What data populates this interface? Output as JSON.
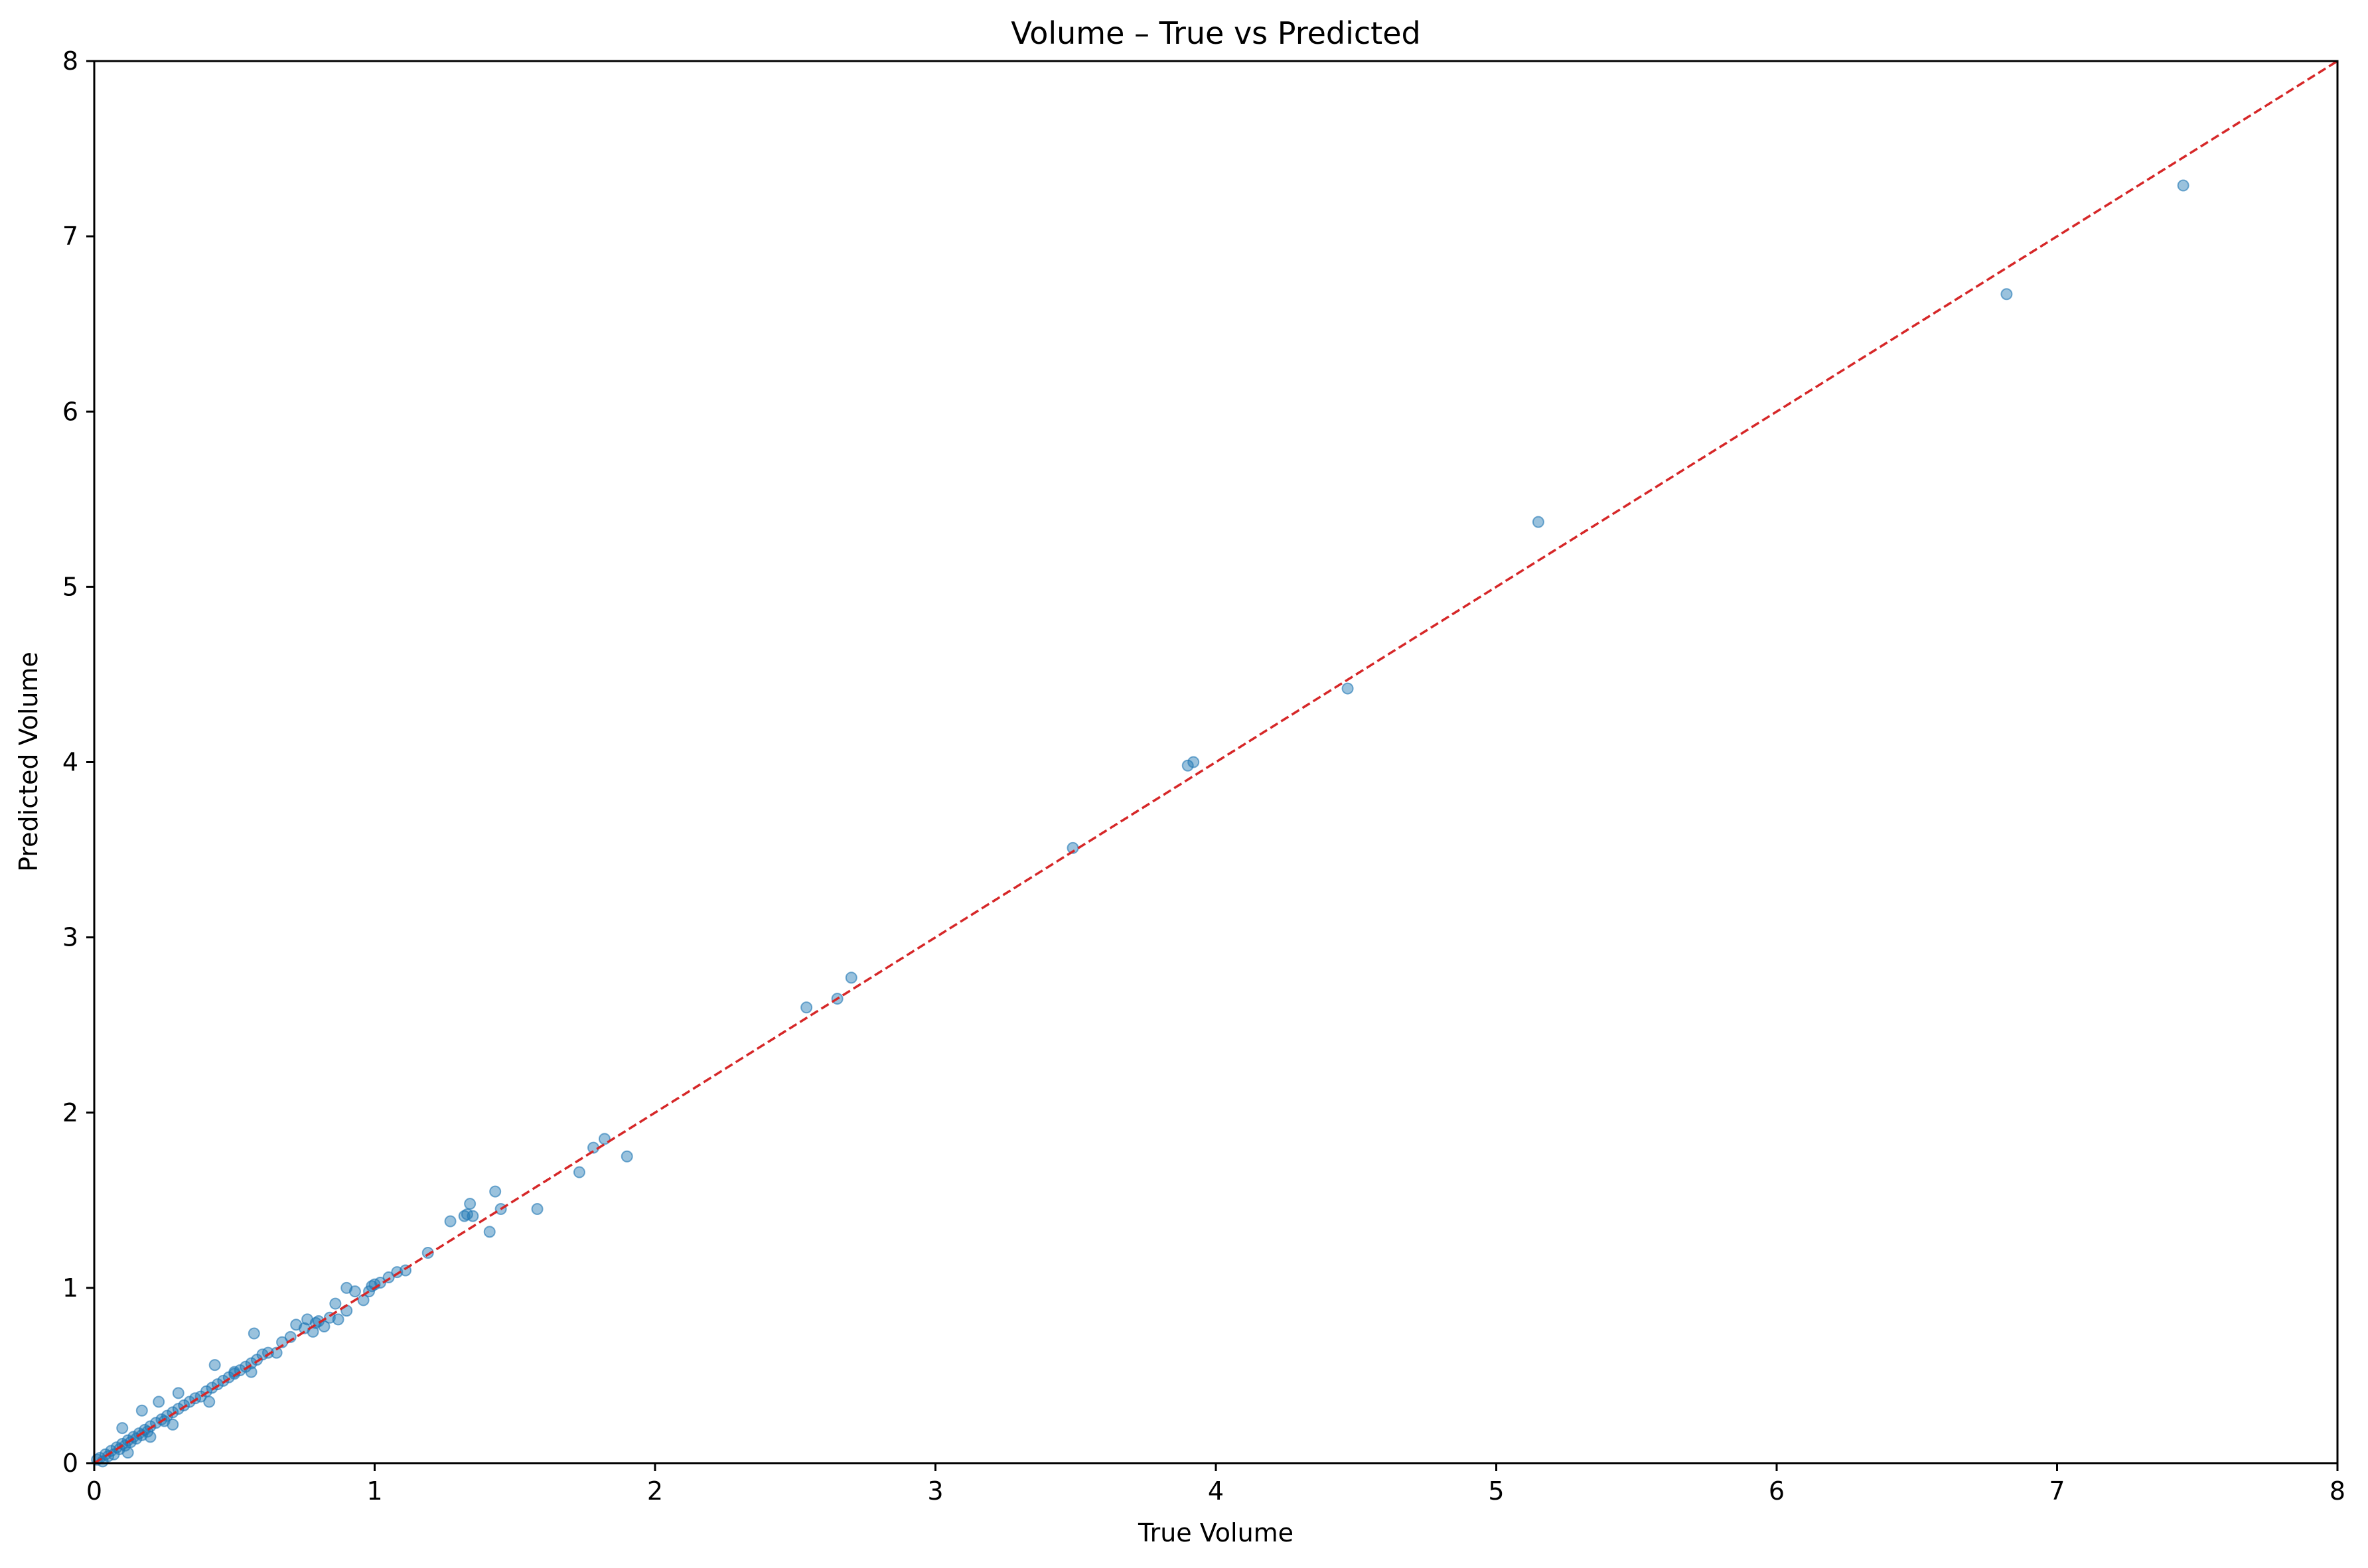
{
  "chart_data": {
    "type": "scatter",
    "title": "Volume – True vs Predicted",
    "xlabel": "True Volume",
    "ylabel": "Predicted Volume",
    "xlim": [
      0,
      8
    ],
    "ylim": [
      0,
      8
    ],
    "xticks": [
      "0",
      "1",
      "2",
      "3",
      "4",
      "5",
      "6",
      "7",
      "8"
    ],
    "yticks": [
      "0",
      "1",
      "2",
      "3",
      "4",
      "5",
      "6",
      "7",
      "8"
    ],
    "grid": false,
    "legend": "none",
    "colors": {
      "points": "#1f77b4",
      "reference_line": "#d62728",
      "axes": "#000000"
    },
    "reference_line": {
      "from": [
        0,
        0
      ],
      "to": [
        8,
        8
      ],
      "style": "dashed"
    },
    "series": [
      {
        "points": [
          [
            0.01,
            0.02
          ],
          [
            0.02,
            0.03
          ],
          [
            0.03,
            0.01
          ],
          [
            0.04,
            0.05
          ],
          [
            0.05,
            0.04
          ],
          [
            0.06,
            0.07
          ],
          [
            0.07,
            0.05
          ],
          [
            0.08,
            0.09
          ],
          [
            0.09,
            0.08
          ],
          [
            0.1,
            0.11
          ],
          [
            0.11,
            0.1
          ],
          [
            0.12,
            0.13
          ],
          [
            0.13,
            0.12
          ],
          [
            0.14,
            0.15
          ],
          [
            0.15,
            0.14
          ],
          [
            0.16,
            0.17
          ],
          [
            0.17,
            0.16
          ],
          [
            0.18,
            0.19
          ],
          [
            0.19,
            0.18
          ],
          [
            0.2,
            0.21
          ],
          [
            0.22,
            0.23
          ],
          [
            0.24,
            0.25
          ],
          [
            0.25,
            0.24
          ],
          [
            0.26,
            0.27
          ],
          [
            0.28,
            0.29
          ],
          [
            0.3,
            0.31
          ],
          [
            0.32,
            0.33
          ],
          [
            0.34,
            0.35
          ],
          [
            0.36,
            0.37
          ],
          [
            0.38,
            0.38
          ],
          [
            0.4,
            0.41
          ],
          [
            0.42,
            0.43
          ],
          [
            0.44,
            0.45
          ],
          [
            0.46,
            0.47
          ],
          [
            0.48,
            0.49
          ],
          [
            0.5,
            0.51
          ],
          [
            0.52,
            0.53
          ],
          [
            0.54,
            0.55
          ],
          [
            0.56,
            0.57
          ],
          [
            0.58,
            0.59
          ],
          [
            0.1,
            0.2
          ],
          [
            0.17,
            0.3
          ],
          [
            0.23,
            0.35
          ],
          [
            0.3,
            0.4
          ],
          [
            0.43,
            0.56
          ],
          [
            0.57,
            0.74
          ],
          [
            0.12,
            0.06
          ],
          [
            0.2,
            0.15
          ],
          [
            0.28,
            0.22
          ],
          [
            0.41,
            0.35
          ],
          [
            0.5,
            0.52
          ],
          [
            0.56,
            0.52
          ],
          [
            0.6,
            0.62
          ],
          [
            0.62,
            0.63
          ],
          [
            0.65,
            0.63
          ],
          [
            0.67,
            0.69
          ],
          [
            0.7,
            0.72
          ],
          [
            0.72,
            0.79
          ],
          [
            0.75,
            0.77
          ],
          [
            0.76,
            0.82
          ],
          [
            0.78,
            0.75
          ],
          [
            0.79,
            0.8
          ],
          [
            0.8,
            0.81
          ],
          [
            0.82,
            0.78
          ],
          [
            0.84,
            0.83
          ],
          [
            0.86,
            0.91
          ],
          [
            0.87,
            0.82
          ],
          [
            0.9,
            1.0
          ],
          [
            0.9,
            0.87
          ],
          [
            0.93,
            0.98
          ],
          [
            0.96,
            0.93
          ],
          [
            0.98,
            0.98
          ],
          [
            0.99,
            1.01
          ],
          [
            1.0,
            1.02
          ],
          [
            1.02,
            1.03
          ],
          [
            1.05,
            1.06
          ],
          [
            1.08,
            1.09
          ],
          [
            1.11,
            1.1
          ],
          [
            1.19,
            1.2
          ],
          [
            1.27,
            1.38
          ],
          [
            1.32,
            1.41
          ],
          [
            1.33,
            1.42
          ],
          [
            1.34,
            1.48
          ],
          [
            1.35,
            1.41
          ],
          [
            1.41,
            1.32
          ],
          [
            1.43,
            1.55
          ],
          [
            1.45,
            1.45
          ],
          [
            1.58,
            1.45
          ],
          [
            1.73,
            1.66
          ],
          [
            1.78,
            1.8
          ],
          [
            1.82,
            1.85
          ],
          [
            1.9,
            1.75
          ],
          [
            2.54,
            2.6
          ],
          [
            2.65,
            2.65
          ],
          [
            2.7,
            2.77
          ],
          [
            3.49,
            3.51
          ],
          [
            3.9,
            3.98
          ],
          [
            3.92,
            4.0
          ],
          [
            4.47,
            4.42
          ],
          [
            5.15,
            5.37
          ],
          [
            6.82,
            6.67
          ],
          [
            7.45,
            7.29
          ]
        ]
      }
    ]
  }
}
